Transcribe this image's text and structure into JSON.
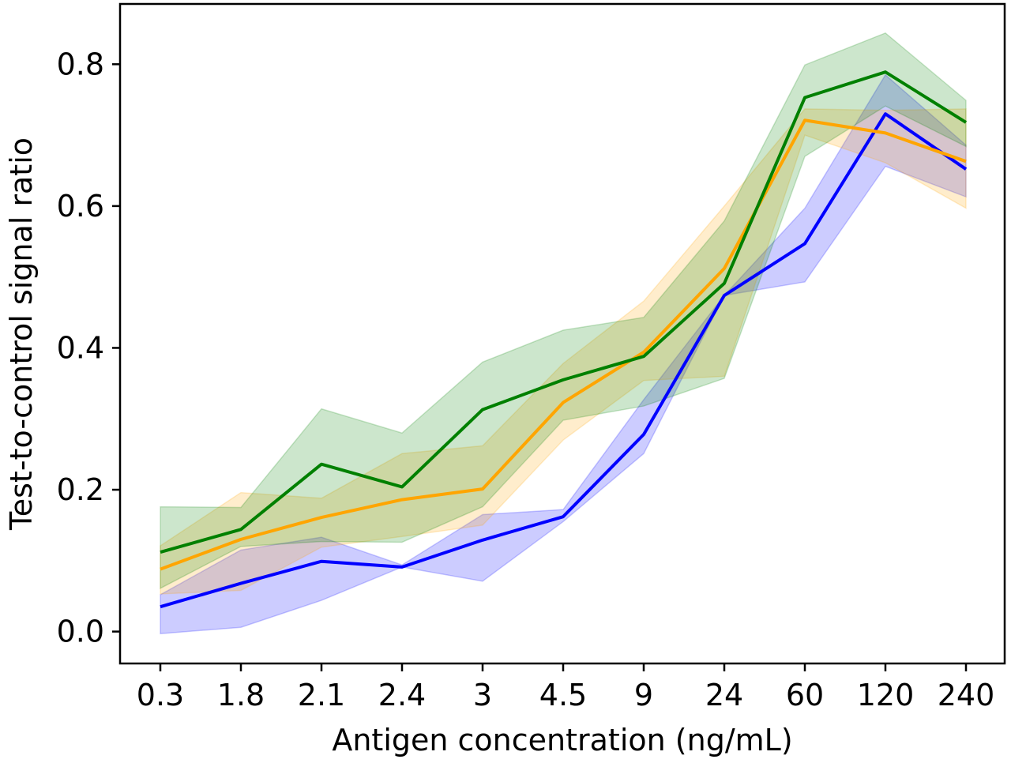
{
  "chart_data": {
    "type": "line",
    "title": "",
    "xlabel": "Antigen concentration (ng/mL)",
    "ylabel": "Test-to-control signal ratio",
    "categories": [
      "0.3",
      "1.8",
      "2.1",
      "2.4",
      "3",
      "4.5",
      "9",
      "24",
      "60",
      "120",
      "240"
    ],
    "y_ticks": [
      "0.0",
      "0.2",
      "0.4",
      "0.6",
      "0.8"
    ],
    "y_tick_values": [
      0.0,
      0.2,
      0.4,
      0.6,
      0.8
    ],
    "ylim": [
      -0.045,
      0.885
    ],
    "grid": false,
    "legend": "none",
    "series": [
      {
        "color": "#0000ff",
        "band_color": "#0000ff",
        "values": [
          0.035,
          0.068,
          0.099,
          0.091,
          0.129,
          0.162,
          0.278,
          0.474,
          0.547,
          0.73,
          0.652
        ],
        "lower": [
          -0.003,
          0.006,
          0.044,
          0.091,
          0.071,
          0.155,
          0.251,
          0.474,
          0.493,
          0.656,
          0.613
        ],
        "upper": [
          0.052,
          0.115,
          0.133,
          0.094,
          0.165,
          0.172,
          0.327,
          0.474,
          0.597,
          0.785,
          0.686
        ]
      },
      {
        "color": "#ffa500",
        "band_color": "#ffa500",
        "values": [
          0.088,
          0.13,
          0.161,
          0.186,
          0.201,
          0.323,
          0.394,
          0.512,
          0.721,
          0.703,
          0.663
        ],
        "lower": [
          0.053,
          0.058,
          0.119,
          0.134,
          0.15,
          0.27,
          0.354,
          0.36,
          0.7,
          0.661,
          0.597
        ],
        "upper": [
          0.121,
          0.196,
          0.188,
          0.251,
          0.262,
          0.378,
          0.466,
          0.6,
          0.737,
          0.735,
          0.737
        ]
      },
      {
        "color": "#008000",
        "band_color": "#008000",
        "values": [
          0.112,
          0.144,
          0.236,
          0.204,
          0.313,
          0.355,
          0.388,
          0.491,
          0.753,
          0.789,
          0.718
        ],
        "lower": [
          0.061,
          0.12,
          0.127,
          0.126,
          0.176,
          0.298,
          0.318,
          0.357,
          0.67,
          0.741,
          0.684
        ],
        "upper": [
          0.176,
          0.175,
          0.314,
          0.28,
          0.38,
          0.425,
          0.443,
          0.579,
          0.799,
          0.844,
          0.749
        ]
      }
    ]
  }
}
